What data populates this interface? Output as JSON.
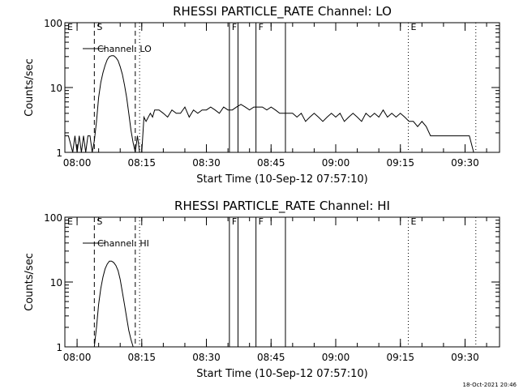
{
  "footer_timestamp": "18-Oct-2021 20:46",
  "chart_data": [
    {
      "type": "line",
      "title": "RHESSI PARTICLE_RATE Channel: LO",
      "xlabel": "Start Time (10-Sep-12 07:57:10)",
      "ylabel": "Counts/sec",
      "y_scale": "log",
      "ylim": [
        1,
        100
      ],
      "y_ticks": [
        "1",
        "10",
        "100"
      ],
      "xlim": [
        "07:57:10",
        "09:38:00"
      ],
      "x_ticks": [
        "08:00",
        "08:15",
        "08:30",
        "08:45",
        "09:00",
        "09:15",
        "09:30"
      ],
      "legend": {
        "label": "Channel: LO",
        "position": "top-left"
      },
      "event_lines": [
        {
          "time": "07:57:10",
          "label": "E",
          "style": "none"
        },
        {
          "time": "08:04:00",
          "label": "S",
          "style": "dashed"
        },
        {
          "time": "08:13:30",
          "label": "",
          "style": "dashed"
        },
        {
          "time": "08:14:30",
          "label": "",
          "style": "dotted"
        },
        {
          "time": "08:35:20",
          "label": "F",
          "style": "solid"
        },
        {
          "time": "08:37:20",
          "label": "",
          "style": "solid"
        },
        {
          "time": "08:41:30",
          "label": "F",
          "style": "solid"
        },
        {
          "time": "08:48:20",
          "label": "",
          "style": "solid"
        },
        {
          "time": "09:16:50",
          "label": "E",
          "style": "dotted"
        },
        {
          "time": "09:32:30",
          "label": "",
          "style": "dotted"
        }
      ],
      "series": [
        {
          "times": [
            "07:57:10",
            "07:58:00",
            "07:59:00",
            "07:59:30",
            "08:00:00",
            "08:00:30",
            "08:01:00",
            "08:01:30",
            "08:02:00",
            "08:02:30",
            "08:03:00",
            "08:03:30",
            "08:04:00",
            "08:04:30",
            "08:05:00",
            "08:05:30",
            "08:06:00",
            "08:06:30",
            "08:07:00",
            "08:07:30",
            "08:08:00",
            "08:08:30",
            "08:09:00",
            "08:09:30",
            "08:10:00",
            "08:10:30",
            "08:11:00",
            "08:11:30",
            "08:12:00",
            "08:12:30",
            "08:13:00",
            "08:13:30",
            "08:14:00",
            "08:14:30",
            "08:15:00",
            "08:15:30",
            "08:16:00",
            "08:17:00",
            "08:17:30",
            "08:18:00",
            "08:19:00",
            "08:20:00",
            "08:21:00",
            "08:22:00",
            "08:23:00",
            "08:24:00",
            "08:25:00",
            "08:26:00",
            "08:27:00",
            "08:28:00",
            "08:29:00",
            "08:30:00",
            "08:31:00",
            "08:32:00",
            "08:33:00",
            "08:34:00",
            "08:35:00",
            "08:36:00",
            "08:37:00",
            "08:38:00",
            "08:39:00",
            "08:40:00",
            "08:41:00",
            "08:42:00",
            "08:43:00",
            "08:44:00",
            "08:45:00",
            "08:46:00",
            "08:47:00",
            "08:48:00",
            "08:49:00",
            "08:50:00",
            "08:51:00",
            "08:52:00",
            "08:53:00",
            "08:54:00",
            "08:55:00",
            "08:56:00",
            "08:57:00",
            "08:58:00",
            "08:59:00",
            "09:00:00",
            "09:01:00",
            "09:02:00",
            "09:03:00",
            "09:04:00",
            "09:05:00",
            "09:06:00",
            "09:07:00",
            "09:08:00",
            "09:09:00",
            "09:10:00",
            "09:11:00",
            "09:12:00",
            "09:13:00",
            "09:14:00",
            "09:15:00",
            "09:16:00",
            "09:17:00",
            "09:18:00",
            "09:19:00",
            "09:20:00",
            "09:21:00",
            "09:22:00",
            "09:23:00",
            "09:24:00",
            "09:25:00",
            "09:26:00",
            "09:27:00",
            "09:28:00",
            "09:29:00",
            "09:30:00",
            "09:31:00",
            "09:32:00",
            "09:32:30"
          ],
          "values": [
            1.8,
            1.8,
            1.0,
            1.8,
            1.0,
            1.8,
            1.0,
            1.8,
            1.0,
            1.8,
            1.8,
            1.0,
            1.5,
            3.0,
            7.0,
            12.0,
            17.0,
            22.0,
            27.0,
            30.0,
            31.0,
            31.0,
            29.0,
            26.0,
            21.0,
            16.0,
            11.0,
            7.0,
            4.0,
            2.2,
            1.4,
            1.0,
            1.8,
            1.0,
            1.0,
            3.5,
            3.0,
            4.0,
            3.5,
            4.5,
            4.5,
            4.0,
            3.5,
            4.5,
            4.0,
            4.0,
            5.0,
            3.5,
            4.5,
            4.0,
            4.5,
            4.5,
            5.0,
            4.5,
            4.0,
            5.0,
            4.5,
            4.5,
            5.0,
            5.5,
            5.0,
            4.5,
            5.0,
            5.0,
            5.0,
            4.5,
            5.0,
            4.5,
            4.0,
            4.0,
            4.0,
            4.0,
            3.5,
            4.0,
            3.0,
            3.5,
            4.0,
            3.5,
            3.0,
            3.5,
            4.0,
            3.5,
            4.0,
            3.0,
            3.5,
            4.0,
            3.5,
            3.0,
            4.0,
            3.5,
            4.0,
            3.5,
            4.5,
            3.5,
            4.0,
            3.5,
            4.0,
            3.5,
            3.0,
            3.0,
            2.5,
            3.0,
            2.5,
            1.8,
            1.8,
            1.8,
            1.8,
            1.8,
            1.8,
            1.8,
            1.8,
            1.8,
            1.8,
            1.0,
            1.0
          ]
        }
      ]
    },
    {
      "type": "line",
      "title": "RHESSI PARTICLE_RATE Channel: HI",
      "xlabel": "Start Time (10-Sep-12 07:57:10)",
      "ylabel": "Counts/sec",
      "y_scale": "log",
      "ylim": [
        1,
        100
      ],
      "y_ticks": [
        "1",
        "10",
        "100"
      ],
      "xlim": [
        "07:57:10",
        "09:38:00"
      ],
      "x_ticks": [
        "08:00",
        "08:15",
        "08:30",
        "08:45",
        "09:00",
        "09:15",
        "09:30"
      ],
      "legend": {
        "label": "Channel: HI",
        "position": "top-left"
      },
      "event_lines": [
        {
          "time": "07:57:10",
          "label": "E",
          "style": "none"
        },
        {
          "time": "08:04:00",
          "label": "S",
          "style": "dashed"
        },
        {
          "time": "08:13:30",
          "label": "",
          "style": "dashed"
        },
        {
          "time": "08:14:30",
          "label": "",
          "style": "dotted"
        },
        {
          "time": "08:35:20",
          "label": "F",
          "style": "solid"
        },
        {
          "time": "08:37:20",
          "label": "",
          "style": "solid"
        },
        {
          "time": "08:41:30",
          "label": "F",
          "style": "solid"
        },
        {
          "time": "08:48:20",
          "label": "",
          "style": "solid"
        },
        {
          "time": "09:16:50",
          "label": "E",
          "style": "dotted"
        },
        {
          "time": "09:32:30",
          "label": "",
          "style": "dotted"
        }
      ],
      "series": [
        {
          "times": [
            "08:04:00",
            "08:04:30",
            "08:05:00",
            "08:05:30",
            "08:06:00",
            "08:06:30",
            "08:07:00",
            "08:07:30",
            "08:08:00",
            "08:08:30",
            "08:09:00",
            "08:09:30",
            "08:10:00",
            "08:10:30",
            "08:11:00",
            "08:11:30",
            "08:12:00",
            "08:12:30",
            "08:13:00"
          ],
          "values": [
            1.0,
            2.0,
            4.5,
            8.0,
            12.0,
            16.0,
            19.0,
            21.0,
            21.0,
            20.0,
            18.0,
            15.0,
            11.0,
            7.0,
            4.5,
            2.8,
            1.8,
            1.3,
            1.0
          ]
        }
      ]
    }
  ]
}
